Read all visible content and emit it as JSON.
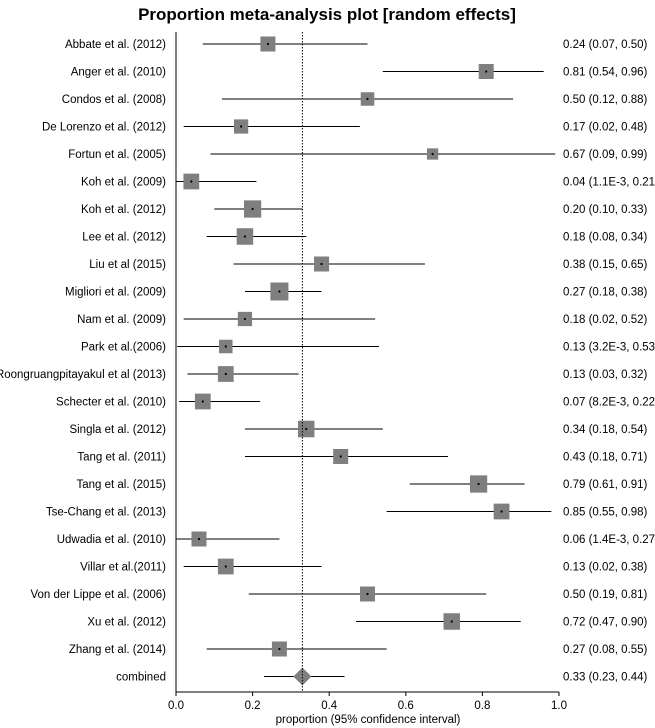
{
  "chart_data": {
    "type": "forest",
    "title": "Proportion meta-analysis plot [random effects]",
    "xlabel": "proportion (95% confidence interval)",
    "xlim": [
      0.0,
      1.0
    ],
    "xticks": [
      "0.0",
      "0.2",
      "0.4",
      "0.6",
      "0.8",
      "1.0"
    ],
    "xtick_values": [
      0.0,
      0.2,
      0.4,
      0.6,
      0.8,
      1.0
    ],
    "reference_line": 0.33,
    "studies": [
      {
        "name": "Abbate et al. (2012)",
        "est": 0.24,
        "lo": 0.07,
        "hi": 0.5,
        "weight": 1.0,
        "ci_text": "0.24 (0.07, 0.50)"
      },
      {
        "name": "Anger et al. (2010)",
        "est": 0.81,
        "lo": 0.54,
        "hi": 0.96,
        "weight": 1.0,
        "ci_text": "0.81 (0.54, 0.96)"
      },
      {
        "name": "Condos et al. (2008)",
        "est": 0.5,
        "lo": 0.12,
        "hi": 0.88,
        "weight": 0.9,
        "ci_text": "0.50 (0.12, 0.88)"
      },
      {
        "name": "De Lorenzo et al. (2012)",
        "est": 0.17,
        "lo": 0.02,
        "hi": 0.48,
        "weight": 0.95,
        "ci_text": "0.17 (0.02, 0.48)"
      },
      {
        "name": "Fortun et al. (2005)",
        "est": 0.67,
        "lo": 0.09,
        "hi": 0.99,
        "weight": 0.75,
        "ci_text": "0.67 (0.09, 0.99)"
      },
      {
        "name": "Koh et al. (2009)",
        "est": 0.04,
        "lo": 0.0011,
        "hi": 0.21,
        "weight": 1.05,
        "ci_text": "0.04 (1.1E-3, 0.21)"
      },
      {
        "name": "Koh et al. (2012)",
        "est": 0.2,
        "lo": 0.1,
        "hi": 0.33,
        "weight": 1.15,
        "ci_text": "0.20 (0.10, 0.33)"
      },
      {
        "name": "Lee et al. (2012)",
        "est": 0.18,
        "lo": 0.08,
        "hi": 0.34,
        "weight": 1.1,
        "ci_text": "0.18 (0.08, 0.34)"
      },
      {
        "name": "Liu et al (2015)",
        "est": 0.38,
        "lo": 0.15,
        "hi": 0.65,
        "weight": 1.0,
        "ci_text": "0.38 (0.15, 0.65)"
      },
      {
        "name": "Migliori et al. (2009)",
        "est": 0.27,
        "lo": 0.18,
        "hi": 0.38,
        "weight": 1.2,
        "ci_text": "0.27 (0.18, 0.38)"
      },
      {
        "name": "Nam et al. (2009)",
        "est": 0.18,
        "lo": 0.02,
        "hi": 0.52,
        "weight": 0.95,
        "ci_text": "0.18 (0.02, 0.52)"
      },
      {
        "name": "Park et al.(2006)",
        "est": 0.13,
        "lo": 0.0032,
        "hi": 0.53,
        "weight": 0.9,
        "ci_text": "0.13 (3.2E-3, 0.53)"
      },
      {
        "name": "Roongruangpitayakul et al (2013)",
        "est": 0.13,
        "lo": 0.03,
        "hi": 0.32,
        "weight": 1.05,
        "ci_text": "0.13 (0.03, 0.32)"
      },
      {
        "name": "Schecter et al. (2010)",
        "est": 0.07,
        "lo": 0.0082,
        "hi": 0.22,
        "weight": 1.05,
        "ci_text": "0.07 (8.2E-3, 0.22)"
      },
      {
        "name": "Singla et al. (2012)",
        "est": 0.34,
        "lo": 0.18,
        "hi": 0.54,
        "weight": 1.1,
        "ci_text": "0.34 (0.18, 0.54)"
      },
      {
        "name": "Tang et al. (2011)",
        "est": 0.43,
        "lo": 0.18,
        "hi": 0.71,
        "weight": 1.0,
        "ci_text": "0.43 (0.18, 0.71)"
      },
      {
        "name": "Tang et al. (2015)",
        "est": 0.79,
        "lo": 0.61,
        "hi": 0.91,
        "weight": 1.15,
        "ci_text": "0.79 (0.61, 0.91)"
      },
      {
        "name": "Tse-Chang et al. (2013)",
        "est": 0.85,
        "lo": 0.55,
        "hi": 0.98,
        "weight": 1.05,
        "ci_text": "0.85 (0.55, 0.98)"
      },
      {
        "name": "Udwadia et al. (2010)",
        "est": 0.06,
        "lo": 0.0014,
        "hi": 0.27,
        "weight": 1.0,
        "ci_text": "0.06 (1.4E-3, 0.27)"
      },
      {
        "name": "Villar et al.(2011)",
        "est": 0.13,
        "lo": 0.02,
        "hi": 0.38,
        "weight": 1.05,
        "ci_text": "0.13 (0.02, 0.38)"
      },
      {
        "name": "Von der Lippe et al. (2006)",
        "est": 0.5,
        "lo": 0.19,
        "hi": 0.81,
        "weight": 1.0,
        "ci_text": "0.50 (0.19, 0.81)"
      },
      {
        "name": "Xu et al. (2012)",
        "est": 0.72,
        "lo": 0.47,
        "hi": 0.9,
        "weight": 1.1,
        "ci_text": "0.72 (0.47, 0.90)"
      },
      {
        "name": "Zhang et al. (2014)",
        "est": 0.27,
        "lo": 0.08,
        "hi": 0.55,
        "weight": 1.0,
        "ci_text": "0.27 (0.08, 0.55)"
      }
    ],
    "combined": {
      "name": "combined",
      "est": 0.33,
      "lo": 0.23,
      "hi": 0.44,
      "ci_text": "0.33 (0.23, 0.44)"
    },
    "colors": {
      "marker": "#7f7f7f",
      "line": "#000000",
      "reference": "#000000"
    }
  }
}
